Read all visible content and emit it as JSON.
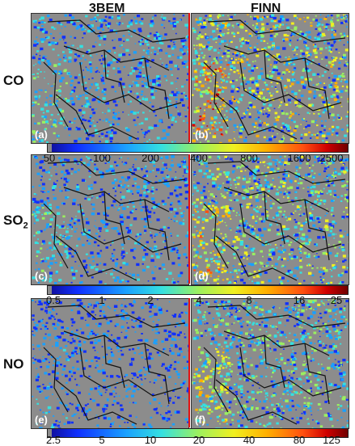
{
  "columns": {
    "left_title": "3BEM",
    "right_title": "FINN"
  },
  "rows": [
    {
      "species": "CO",
      "sub": ""
    },
    {
      "species": "SO",
      "sub": "2"
    },
    {
      "species": "NO",
      "sub": ""
    }
  ],
  "panels": [
    "(a)",
    "(b)",
    "(c)",
    "(d)",
    "(e)",
    "(f)"
  ],
  "colorbars": [
    {
      "ticks": [
        "50",
        "100",
        "200",
        "400",
        "800",
        "1600",
        "2500"
      ]
    },
    {
      "ticks": [
        "0.5",
        "1",
        "2",
        "4",
        "8",
        "16",
        "25"
      ]
    },
    {
      "ticks": [
        "2.5",
        "5",
        "10",
        "20",
        "40",
        "80",
        "125"
      ]
    }
  ],
  "colors": {
    "divider": "#e01010",
    "background_gray": "#8c8c8c"
  }
}
